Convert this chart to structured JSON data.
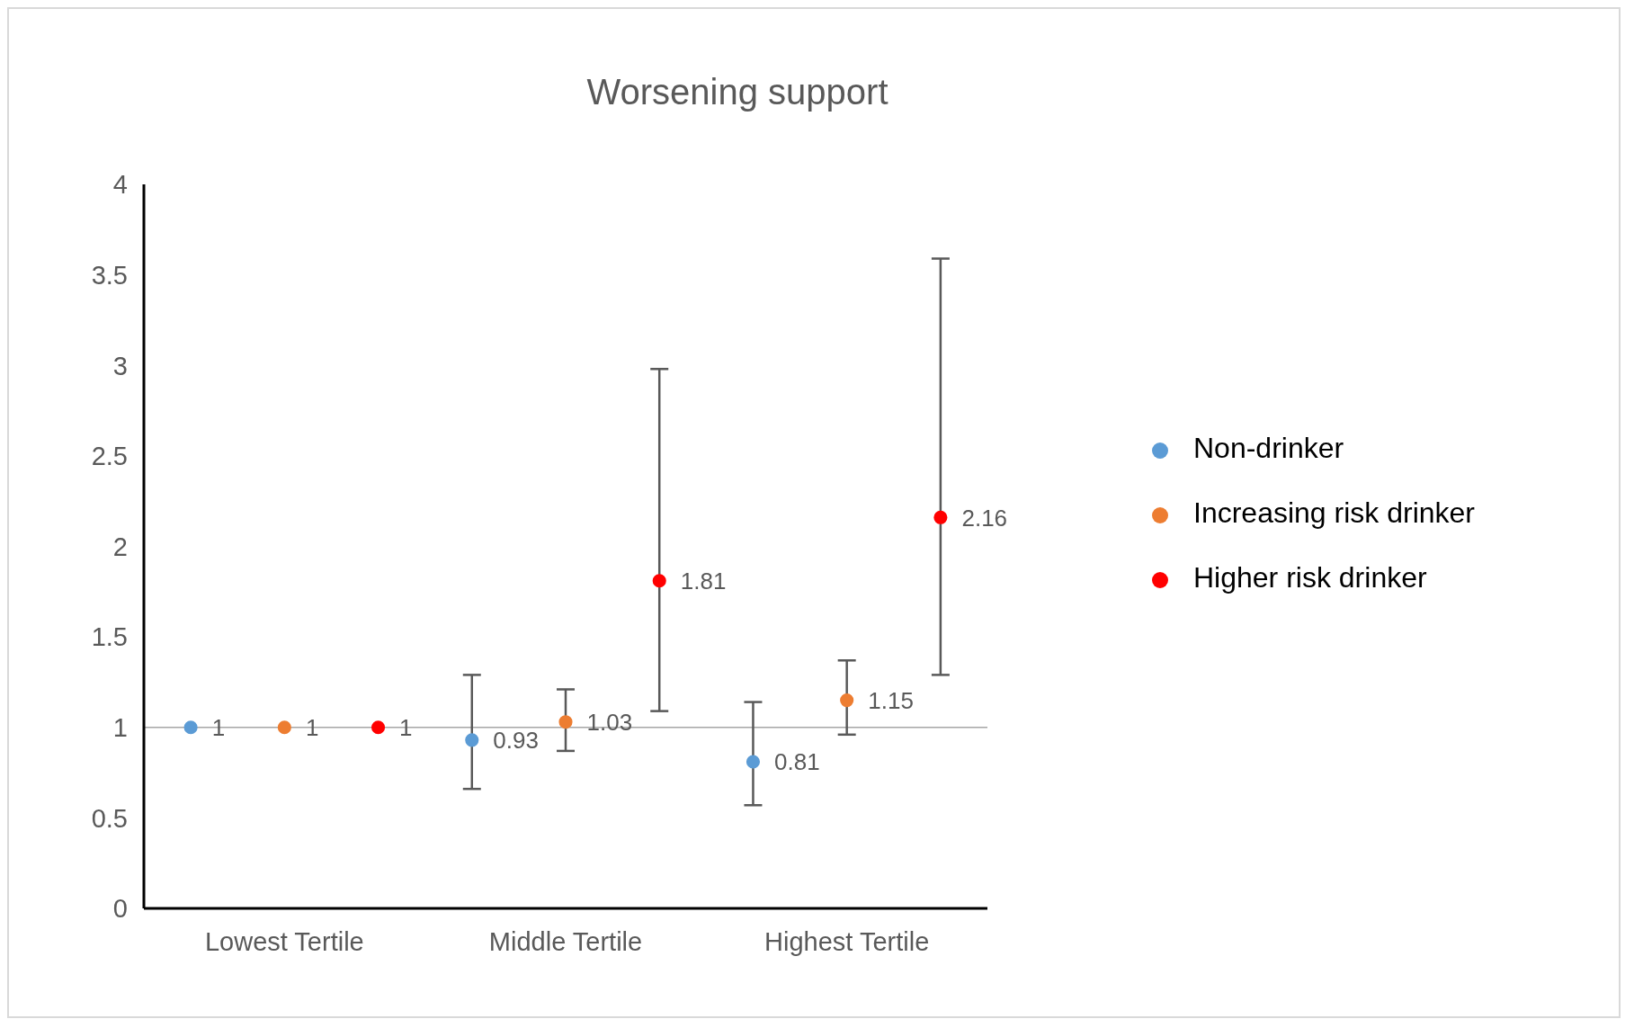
{
  "chart_data": {
    "type": "scatter",
    "title": "Worsening support",
    "categories": [
      "Lowest Tertile",
      "Middle Tertile",
      "Highest Tertile"
    ],
    "series": [
      {
        "name": "Non-drinker",
        "color": "#5b9bd5",
        "values": [
          1,
          0.93,
          0.81
        ],
        "errors": [
          null,
          [
            0.66,
            1.29
          ],
          [
            0.57,
            1.14
          ]
        ]
      },
      {
        "name": "Increasing risk drinker",
        "color": "#ed7d31",
        "values": [
          1,
          1.03,
          1.15
        ],
        "errors": [
          null,
          [
            0.87,
            1.21
          ],
          [
            0.96,
            1.37
          ]
        ]
      },
      {
        "name": "Higher risk drinker",
        "color": "#ff0000",
        "values": [
          1,
          1.81,
          2.16
        ],
        "errors": [
          null,
          [
            1.09,
            2.98
          ],
          [
            1.29,
            3.59
          ]
        ]
      }
    ],
    "ylim": [
      0,
      4
    ],
    "yticks": [
      0,
      0.5,
      1,
      1.5,
      2,
      2.5,
      3,
      3.5,
      4
    ],
    "ref_lines": [
      {
        "axis": "y",
        "value": 1,
        "color": "#a6a6a6"
      }
    ],
    "grid": false,
    "legend": "right",
    "marker": "circle",
    "data_labels": true
  }
}
